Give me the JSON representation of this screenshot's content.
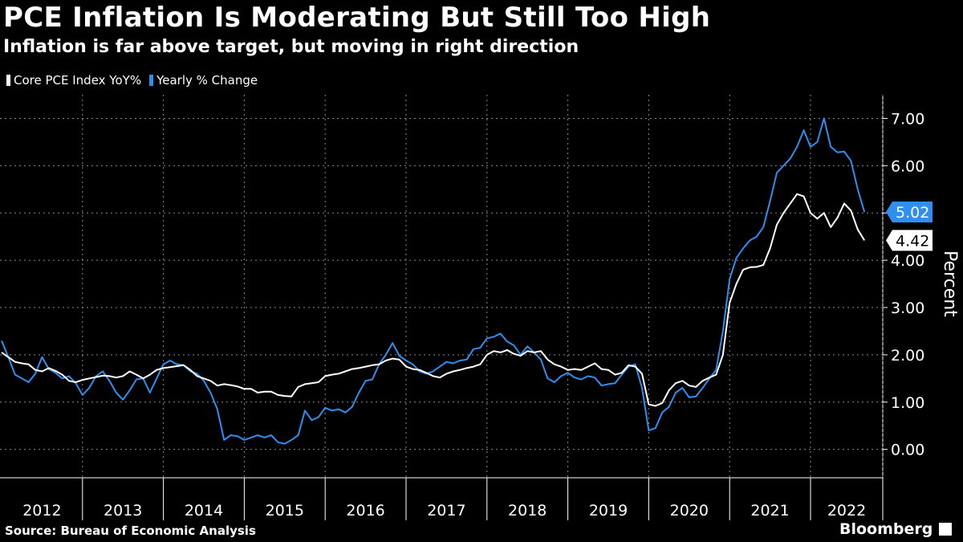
{
  "header": {
    "title": "PCE Inflation Is Moderating But Still Too High",
    "subtitle": "Inflation is far above target, but moving in right direction"
  },
  "legend": [
    {
      "label": "Core PCE Index YoY%",
      "color": "#ffffff"
    },
    {
      "label": "Yearly % Change",
      "color": "#2e8ff0"
    }
  ],
  "footer": {
    "source": "Source: Bureau of Economic Analysis",
    "brand": "Bloomberg"
  },
  "chart_data": {
    "type": "line",
    "title": "PCE Inflation Is Moderating But Still Too High",
    "subtitle": "Inflation is far above target, but moving in right direction",
    "xlabel": "",
    "ylabel": "Percent",
    "ylim": [
      -0.6,
      7.5
    ],
    "yticks": [
      0,
      1,
      2,
      3,
      4,
      5,
      6,
      7
    ],
    "ytick_labels": [
      "0.00",
      "1.00",
      "2.00",
      "3.00",
      "4.00",
      "5.00",
      "6.00",
      "7.00"
    ],
    "x_start": "2012-01",
    "x_end": "2022-11",
    "year_labels": [
      "2012",
      "2013",
      "2014",
      "2015",
      "2016",
      "2017",
      "2018",
      "2019",
      "2020",
      "2021",
      "2022"
    ],
    "grid": true,
    "legend_position": "top-left",
    "series": [
      {
        "name": "Core PCE Index YoY%",
        "color": "#ffffff",
        "last_value_label": "4.42",
        "values": [
          2.05,
          1.95,
          1.85,
          1.82,
          1.8,
          1.68,
          1.65,
          1.72,
          1.66,
          1.58,
          1.45,
          1.42,
          1.47,
          1.5,
          1.53,
          1.56,
          1.55,
          1.52,
          1.55,
          1.65,
          1.58,
          1.5,
          1.58,
          1.68,
          1.72,
          1.74,
          1.76,
          1.78,
          1.68,
          1.55,
          1.5,
          1.45,
          1.35,
          1.38,
          1.36,
          1.33,
          1.28,
          1.28,
          1.2,
          1.22,
          1.22,
          1.15,
          1.13,
          1.12,
          1.32,
          1.38,
          1.4,
          1.42,
          1.55,
          1.58,
          1.6,
          1.65,
          1.7,
          1.72,
          1.75,
          1.78,
          1.8,
          1.88,
          1.92,
          1.9,
          1.75,
          1.7,
          1.68,
          1.62,
          1.55,
          1.52,
          1.6,
          1.65,
          1.68,
          1.72,
          1.75,
          1.8,
          2.0,
          2.08,
          2.05,
          2.1,
          2.02,
          1.98,
          2.08,
          2.05,
          2.08,
          1.9,
          1.8,
          1.75,
          1.68,
          1.7,
          1.68,
          1.75,
          1.82,
          1.7,
          1.68,
          1.58,
          1.62,
          1.78,
          1.75,
          1.6,
          0.95,
          0.92,
          0.98,
          1.25,
          1.4,
          1.45,
          1.35,
          1.32,
          1.45,
          1.52,
          1.58,
          2.0,
          3.1,
          3.5,
          3.8,
          3.85,
          3.86,
          3.9,
          4.25,
          4.75,
          5.0,
          5.2,
          5.4,
          5.35,
          5.0,
          4.88,
          5.0,
          4.7,
          4.9,
          5.2,
          5.05,
          4.65,
          4.42
        ]
      },
      {
        "name": "Yearly % Change",
        "color": "#2e8ff0",
        "last_value_label": "5.02",
        "values": [
          2.3,
          1.95,
          1.58,
          1.5,
          1.42,
          1.6,
          1.95,
          1.7,
          1.62,
          1.5,
          1.55,
          1.4,
          1.15,
          1.3,
          1.55,
          1.65,
          1.45,
          1.2,
          1.05,
          1.25,
          1.48,
          1.5,
          1.2,
          1.5,
          1.8,
          1.88,
          1.8,
          1.78,
          1.65,
          1.6,
          1.45,
          1.2,
          0.85,
          0.2,
          0.3,
          0.28,
          0.2,
          0.25,
          0.3,
          0.25,
          0.3,
          0.15,
          0.12,
          0.2,
          0.3,
          0.82,
          0.62,
          0.68,
          0.88,
          0.82,
          0.85,
          0.78,
          0.9,
          1.2,
          1.45,
          1.48,
          1.8,
          2.0,
          2.25,
          1.98,
          1.88,
          1.8,
          1.65,
          1.6,
          1.65,
          1.75,
          1.85,
          1.82,
          1.88,
          1.9,
          2.12,
          2.15,
          2.35,
          2.38,
          2.45,
          2.28,
          2.2,
          2.0,
          2.18,
          2.05,
          1.9,
          1.5,
          1.42,
          1.55,
          1.62,
          1.52,
          1.48,
          1.55,
          1.52,
          1.35,
          1.38,
          1.4,
          1.58,
          1.75,
          1.8,
          1.3,
          0.4,
          0.45,
          0.78,
          0.9,
          1.2,
          1.3,
          1.1,
          1.12,
          1.3,
          1.5,
          1.68,
          2.5,
          3.6,
          4.05,
          4.25,
          4.42,
          4.5,
          4.7,
          5.25,
          5.85,
          6.0,
          6.15,
          6.4,
          6.75,
          6.4,
          6.5,
          7.0,
          6.4,
          6.28,
          6.3,
          6.1,
          5.5,
          5.02
        ]
      }
    ]
  }
}
